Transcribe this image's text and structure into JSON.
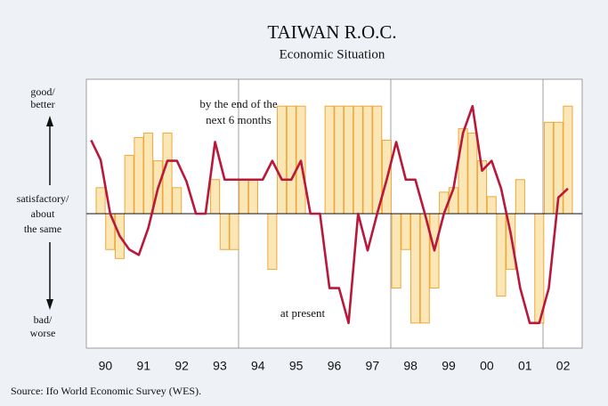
{
  "chart_data": {
    "type": "bar_line",
    "title": "TAIWAN R.O.C.",
    "subtitle": "Economic Situation",
    "y_labels": [
      "good/",
      "better",
      "satisfactory/",
      "about",
      "the same",
      "bad/",
      "worse"
    ],
    "annotations": [
      "by the end of the",
      "next 6 months",
      "at present"
    ],
    "source": "Source: Ifo World Economic Survey (WES).",
    "categories": [
      null,
      "90",
      null,
      null,
      null,
      "91",
      null,
      null,
      null,
      "92",
      null,
      null,
      null,
      "93",
      null,
      null,
      null,
      "94",
      null,
      null,
      null,
      "95",
      null,
      null,
      null,
      "96",
      null,
      null,
      null,
      "97",
      null,
      null,
      null,
      "98",
      null,
      null,
      null,
      "99",
      null,
      null,
      null,
      "00",
      null,
      null,
      null,
      "01",
      null,
      null,
      null,
      "02",
      null,
      null
    ],
    "ylim": [
      -15,
      15
    ],
    "series": [
      {
        "name": "by the end of the next 6 months",
        "kind": "bar",
        "color": "#fbe7b5",
        "edge": "#eea73a",
        "values": [
          null,
          2.9,
          -4.0,
          -5.0,
          6.5,
          8.5,
          9.0,
          5.9,
          9.0,
          2.9,
          0,
          0,
          0,
          3.8,
          -4.0,
          -4.0,
          3.8,
          3.8,
          0,
          -6.2,
          12,
          12,
          12,
          0,
          0,
          12,
          12,
          12,
          12,
          12,
          12,
          8.2,
          -8.3,
          -4.0,
          -12.2,
          -12.2,
          -8.3,
          2.4,
          2.9,
          9.5,
          9.0,
          5.9,
          1.9,
          -9.2,
          -6.2,
          3.8,
          0,
          -12.2,
          10.2,
          10.2,
          12,
          null
        ]
      },
      {
        "name": "at present",
        "kind": "line",
        "color": "#b8183a",
        "values": [
          8.2,
          6.0,
          0,
          -2.5,
          -4.0,
          -4.6,
          -1.6,
          2.8,
          5.9,
          5.9,
          3.6,
          0,
          0,
          8.0,
          3.8,
          3.8,
          3.8,
          3.8,
          3.8,
          5.9,
          3.8,
          3.8,
          5.9,
          0,
          0,
          -8.3,
          -8.3,
          -12.2,
          0,
          -4.1,
          0,
          3.8,
          8.0,
          3.8,
          3.8,
          0,
          -4.1,
          0,
          2.8,
          9.0,
          12.0,
          4.8,
          5.9,
          2.8,
          -2.2,
          -8.3,
          -12.2,
          -12.2,
          -8.3,
          1.8,
          2.8,
          null
        ]
      }
    ]
  }
}
